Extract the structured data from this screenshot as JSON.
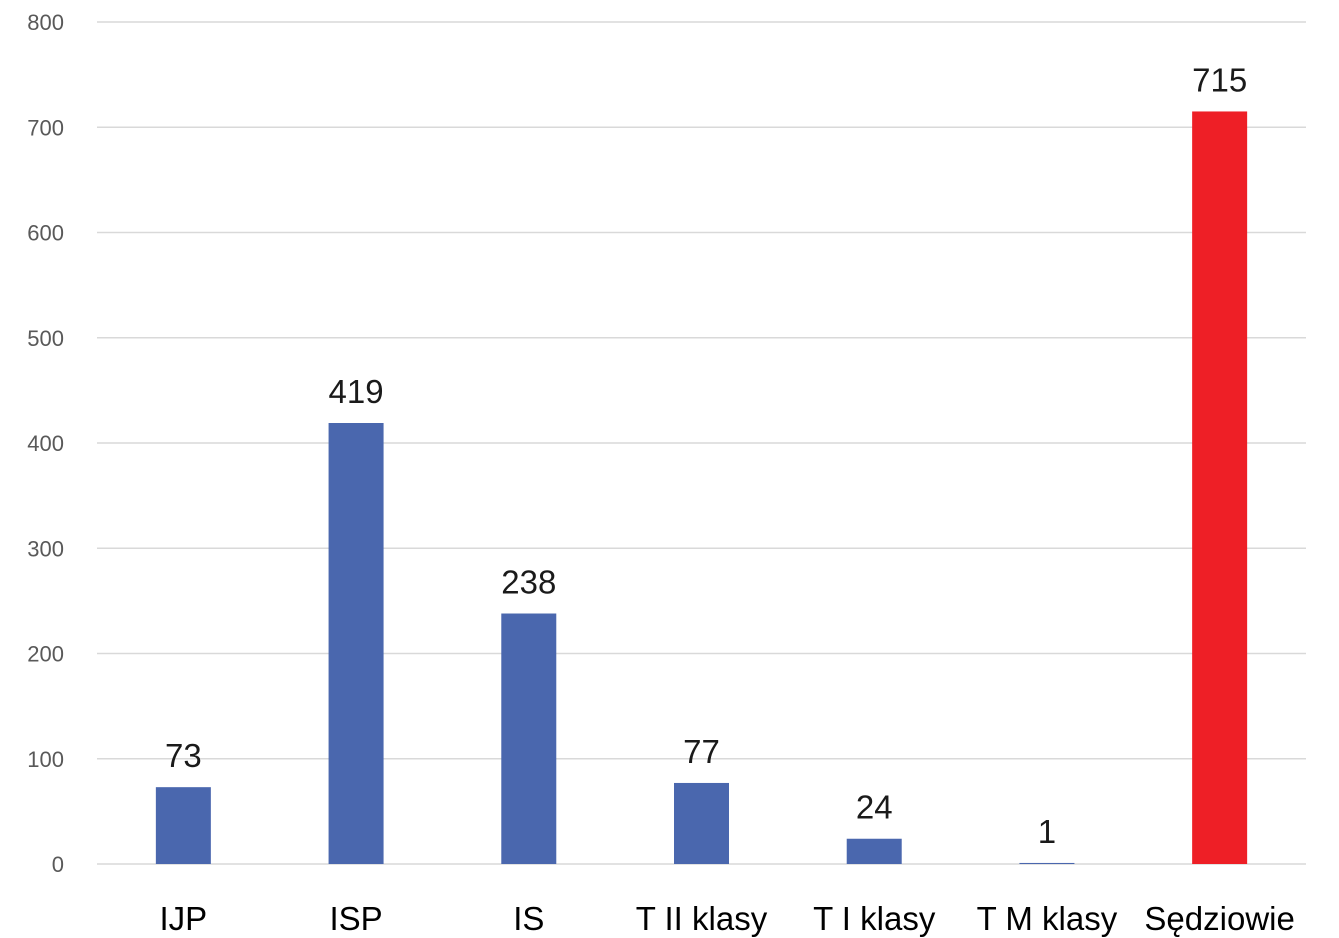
{
  "chart_data": {
    "type": "bar",
    "categories": [
      "IJP",
      "ISP",
      "IS",
      "T II klasy",
      "T I klasy",
      "T M klasy",
      "Sędziowie"
    ],
    "values": [
      73,
      419,
      238,
      77,
      24,
      1,
      715
    ],
    "colors": [
      "#4a67ae",
      "#4a67ae",
      "#4a67ae",
      "#4a67ae",
      "#4a67ae",
      "#4a67ae",
      "#ee1f26"
    ],
    "ylim": [
      0,
      800
    ],
    "yticks": [
      0,
      100,
      200,
      300,
      400,
      500,
      600,
      700,
      800
    ],
    "grid": true,
    "data_labels": true,
    "title": "",
    "xlabel": "",
    "ylabel": ""
  }
}
